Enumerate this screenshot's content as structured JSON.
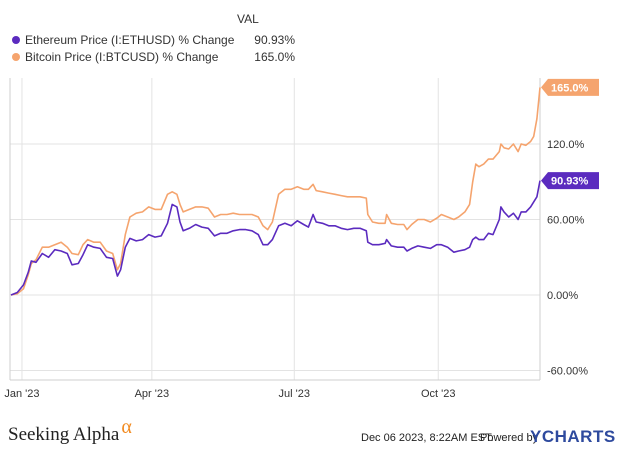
{
  "legend": {
    "header": "VAL",
    "items": [
      {
        "label": "Ethereum Price (I:ETHUSD) % Change",
        "value": "90.93%",
        "color": "#5b2bbf"
      },
      {
        "label": "Bitcoin Price (I:BTCUSD) % Change",
        "value": "165.0%",
        "color": "#f5a46e"
      }
    ]
  },
  "chart_data": {
    "type": "line",
    "xlabel": "",
    "ylabel": "",
    "ylim": [
      -60,
      180
    ],
    "grid": true,
    "x_ticks": [
      {
        "label": "Jan '23",
        "date": "2023-01-08"
      },
      {
        "label": "Apr '23",
        "date": "2023-04-01"
      },
      {
        "label": "Jul '23",
        "date": "2023-07-01"
      },
      {
        "label": "Oct '23",
        "date": "2023-10-01"
      }
    ],
    "y_ticks": [
      {
        "label": "120.0%",
        "value": 120
      },
      {
        "label": "60.00%",
        "value": 60
      },
      {
        "label": "0.00%",
        "value": 0
      },
      {
        "label": "-60.00%",
        "value": -60
      }
    ],
    "end_labels": [
      {
        "series": 1,
        "label": "165.0%",
        "value": 165.0
      },
      {
        "series": 0,
        "label": "90.93%",
        "value": 90.93
      }
    ],
    "series": [
      {
        "name": "Ethereum Price (I:ETHUSD) % Change",
        "color": "#5b2bbf",
        "points": [
          [
            "2023-01-01",
            0
          ],
          [
            "2023-01-05",
            2
          ],
          [
            "2023-01-09",
            8
          ],
          [
            "2023-01-12",
            18
          ],
          [
            "2023-01-14",
            27
          ],
          [
            "2023-01-17",
            26
          ],
          [
            "2023-01-21",
            33
          ],
          [
            "2023-01-25",
            30
          ],
          [
            "2023-01-29",
            36
          ],
          [
            "2023-02-02",
            35
          ],
          [
            "2023-02-06",
            33
          ],
          [
            "2023-02-09",
            24
          ],
          [
            "2023-02-13",
            25
          ],
          [
            "2023-02-16",
            32
          ],
          [
            "2023-02-19",
            40
          ],
          [
            "2023-02-23",
            38
          ],
          [
            "2023-02-27",
            37
          ],
          [
            "2023-03-03",
            30
          ],
          [
            "2023-03-07",
            29
          ],
          [
            "2023-03-10",
            15
          ],
          [
            "2023-03-12",
            20
          ],
          [
            "2023-03-15",
            38
          ],
          [
            "2023-03-18",
            45
          ],
          [
            "2023-03-22",
            43
          ],
          [
            "2023-03-26",
            44
          ],
          [
            "2023-03-30",
            48
          ],
          [
            "2023-04-03",
            46
          ],
          [
            "2023-04-07",
            47
          ],
          [
            "2023-04-11",
            57
          ],
          [
            "2023-04-14",
            72
          ],
          [
            "2023-04-17",
            70
          ],
          [
            "2023-04-19",
            58
          ],
          [
            "2023-04-21",
            51
          ],
          [
            "2023-04-25",
            53
          ],
          [
            "2023-04-29",
            56
          ],
          [
            "2023-05-03",
            54
          ],
          [
            "2023-05-07",
            53
          ],
          [
            "2023-05-11",
            47
          ],
          [
            "2023-05-15",
            49
          ],
          [
            "2023-05-19",
            49
          ],
          [
            "2023-05-23",
            51
          ],
          [
            "2023-05-27",
            52
          ],
          [
            "2023-05-31",
            52
          ],
          [
            "2023-06-04",
            51
          ],
          [
            "2023-06-08",
            48
          ],
          [
            "2023-06-11",
            40
          ],
          [
            "2023-06-14",
            40
          ],
          [
            "2023-06-17",
            44
          ],
          [
            "2023-06-21",
            55
          ],
          [
            "2023-06-25",
            57
          ],
          [
            "2023-06-29",
            55
          ],
          [
            "2023-07-03",
            59
          ],
          [
            "2023-07-07",
            56
          ],
          [
            "2023-07-10",
            54
          ],
          [
            "2023-07-13",
            64
          ],
          [
            "2023-07-15",
            58
          ],
          [
            "2023-07-19",
            57
          ],
          [
            "2023-07-23",
            55
          ],
          [
            "2023-07-27",
            55
          ],
          [
            "2023-07-31",
            53
          ],
          [
            "2023-08-04",
            52
          ],
          [
            "2023-08-08",
            53
          ],
          [
            "2023-08-12",
            53
          ],
          [
            "2023-08-16",
            51
          ],
          [
            "2023-08-17",
            42
          ],
          [
            "2023-08-20",
            40
          ],
          [
            "2023-08-24",
            40
          ],
          [
            "2023-08-28",
            41
          ],
          [
            "2023-08-29",
            44
          ],
          [
            "2023-09-01",
            39
          ],
          [
            "2023-09-05",
            38
          ],
          [
            "2023-09-09",
            38
          ],
          [
            "2023-09-11",
            35
          ],
          [
            "2023-09-14",
            37
          ],
          [
            "2023-09-18",
            39
          ],
          [
            "2023-09-22",
            38
          ],
          [
            "2023-09-26",
            37
          ],
          [
            "2023-09-30",
            40
          ],
          [
            "2023-10-03",
            40
          ],
          [
            "2023-10-07",
            38
          ],
          [
            "2023-10-11",
            34
          ],
          [
            "2023-10-14",
            35
          ],
          [
            "2023-10-18",
            36
          ],
          [
            "2023-10-21",
            38
          ],
          [
            "2023-10-23",
            44
          ],
          [
            "2023-10-25",
            46
          ],
          [
            "2023-10-27",
            44
          ],
          [
            "2023-10-30",
            44
          ],
          [
            "2023-11-02",
            49
          ],
          [
            "2023-11-05",
            48
          ],
          [
            "2023-11-09",
            60
          ],
          [
            "2023-11-10",
            70
          ],
          [
            "2023-11-12",
            66
          ],
          [
            "2023-11-15",
            62
          ],
          [
            "2023-11-18",
            65
          ],
          [
            "2023-11-21",
            60
          ],
          [
            "2023-11-23",
            66
          ],
          [
            "2023-11-26",
            66
          ],
          [
            "2023-11-29",
            70
          ],
          [
            "2023-12-01",
            74
          ],
          [
            "2023-12-03",
            78
          ],
          [
            "2023-12-05",
            90.93
          ]
        ]
      },
      {
        "name": "Bitcoin Price (I:BTCUSD) % Change",
        "color": "#f5a46e",
        "points": [
          [
            "2023-01-01",
            0
          ],
          [
            "2023-01-05",
            1
          ],
          [
            "2023-01-09",
            5
          ],
          [
            "2023-01-12",
            16
          ],
          [
            "2023-01-14",
            25
          ],
          [
            "2023-01-17",
            28
          ],
          [
            "2023-01-21",
            38
          ],
          [
            "2023-01-25",
            38
          ],
          [
            "2023-01-29",
            40
          ],
          [
            "2023-02-02",
            42
          ],
          [
            "2023-02-06",
            38
          ],
          [
            "2023-02-09",
            33
          ],
          [
            "2023-02-13",
            32
          ],
          [
            "2023-02-16",
            40
          ],
          [
            "2023-02-19",
            44
          ],
          [
            "2023-02-23",
            42
          ],
          [
            "2023-02-27",
            42
          ],
          [
            "2023-03-03",
            35
          ],
          [
            "2023-03-07",
            33
          ],
          [
            "2023-03-10",
            20
          ],
          [
            "2023-03-12",
            25
          ],
          [
            "2023-03-15",
            48
          ],
          [
            "2023-03-18",
            62
          ],
          [
            "2023-03-22",
            65
          ],
          [
            "2023-03-26",
            66
          ],
          [
            "2023-03-30",
            70
          ],
          [
            "2023-04-03",
            68
          ],
          [
            "2023-04-07",
            68
          ],
          [
            "2023-04-11",
            80
          ],
          [
            "2023-04-14",
            82
          ],
          [
            "2023-04-17",
            80
          ],
          [
            "2023-04-19",
            72
          ],
          [
            "2023-04-21",
            66
          ],
          [
            "2023-04-25",
            68
          ],
          [
            "2023-04-29",
            70
          ],
          [
            "2023-05-03",
            70
          ],
          [
            "2023-05-07",
            69
          ],
          [
            "2023-05-11",
            62
          ],
          [
            "2023-05-15",
            64
          ],
          [
            "2023-05-19",
            64
          ],
          [
            "2023-05-23",
            65
          ],
          [
            "2023-05-27",
            64
          ],
          [
            "2023-05-31",
            64
          ],
          [
            "2023-06-04",
            64
          ],
          [
            "2023-06-08",
            62
          ],
          [
            "2023-06-11",
            55
          ],
          [
            "2023-06-14",
            52
          ],
          [
            "2023-06-17",
            58
          ],
          [
            "2023-06-21",
            80
          ],
          [
            "2023-06-25",
            84
          ],
          [
            "2023-06-29",
            84
          ],
          [
            "2023-07-03",
            86
          ],
          [
            "2023-07-07",
            84
          ],
          [
            "2023-07-10",
            84
          ],
          [
            "2023-07-13",
            88
          ],
          [
            "2023-07-15",
            83
          ],
          [
            "2023-07-19",
            82
          ],
          [
            "2023-07-23",
            81
          ],
          [
            "2023-07-27",
            80
          ],
          [
            "2023-07-31",
            79
          ],
          [
            "2023-08-04",
            78
          ],
          [
            "2023-08-08",
            78
          ],
          [
            "2023-08-12",
            78
          ],
          [
            "2023-08-16",
            77
          ],
          [
            "2023-08-17",
            64
          ],
          [
            "2023-08-20",
            58
          ],
          [
            "2023-08-24",
            57
          ],
          [
            "2023-08-28",
            57
          ],
          [
            "2023-08-29",
            64
          ],
          [
            "2023-09-01",
            57
          ],
          [
            "2023-09-05",
            56
          ],
          [
            "2023-09-09",
            56
          ],
          [
            "2023-09-11",
            52
          ],
          [
            "2023-09-14",
            56
          ],
          [
            "2023-09-18",
            60
          ],
          [
            "2023-09-22",
            60
          ],
          [
            "2023-09-26",
            58
          ],
          [
            "2023-09-30",
            61
          ],
          [
            "2023-10-03",
            64
          ],
          [
            "2023-10-07",
            62
          ],
          [
            "2023-10-11",
            60
          ],
          [
            "2023-10-14",
            62
          ],
          [
            "2023-10-18",
            66
          ],
          [
            "2023-10-21",
            72
          ],
          [
            "2023-10-23",
            90
          ],
          [
            "2023-10-25",
            104
          ],
          [
            "2023-10-27",
            102
          ],
          [
            "2023-10-30",
            104
          ],
          [
            "2023-11-02",
            108
          ],
          [
            "2023-11-05",
            108
          ],
          [
            "2023-11-09",
            114
          ],
          [
            "2023-11-10",
            120
          ],
          [
            "2023-11-12",
            117
          ],
          [
            "2023-11-15",
            116
          ],
          [
            "2023-11-18",
            120
          ],
          [
            "2023-11-21",
            114
          ],
          [
            "2023-11-23",
            120
          ],
          [
            "2023-11-26",
            119
          ],
          [
            "2023-11-29",
            122
          ],
          [
            "2023-12-01",
            126
          ],
          [
            "2023-12-03",
            140
          ],
          [
            "2023-12-05",
            165.0
          ]
        ]
      }
    ]
  },
  "footer": {
    "brand": "Seeking Alpha",
    "brand_mark": "α",
    "timestamp": "Dec 06 2023, 8:22AM EST.",
    "powered_by": "Powered by",
    "provider": "YCHARTS"
  }
}
